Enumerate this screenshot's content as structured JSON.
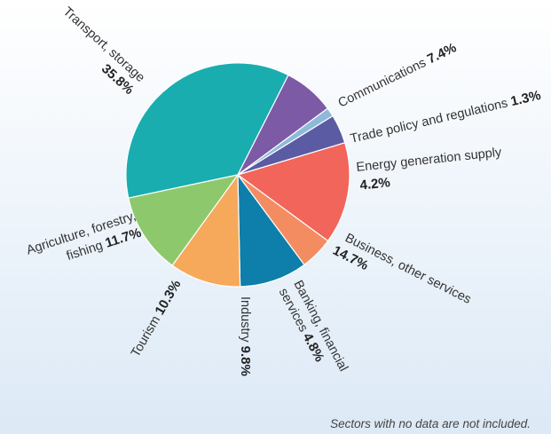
{
  "colors": {
    "background_top": "#ffffff",
    "background_bottom": "#dce9f6",
    "slice_border": "#ffffff"
  },
  "chart_data": {
    "type": "pie",
    "slices": [
      {
        "label": "Transport, storage",
        "value": 35.8,
        "color": "#1aadb0"
      },
      {
        "label": "Communications",
        "value": 7.4,
        "color": "#7c5aa6"
      },
      {
        "label": "Trade policy and regulations",
        "value": 1.3,
        "color": "#8fb9d9"
      },
      {
        "label": "Energy generation supply",
        "value": 4.2,
        "color": "#5b5ba4"
      },
      {
        "label": "Business, other services",
        "value": 14.7,
        "color": "#f1655a"
      },
      {
        "label": "Banking, financial services",
        "value": 4.8,
        "color": "#f48c62"
      },
      {
        "label": "Industry",
        "value": 9.8,
        "color": "#0e7eaa"
      },
      {
        "label": "Tourism",
        "value": 10.3,
        "color": "#f6a85b"
      },
      {
        "label": "Agriculture, forestry, fishing",
        "value": 11.7,
        "color": "#8dc96c"
      }
    ],
    "labels": {
      "transport": {
        "text": "Transport, storage",
        "pct": "35.8%"
      },
      "communications": {
        "text": "Communications ",
        "pct": "7.4%"
      },
      "trade": {
        "text": "Trade policy and regulations ",
        "pct": "1.3%"
      },
      "energy": {
        "text": "Energy generation supply",
        "pct": "4.2%"
      },
      "business": {
        "text": "Business, other services",
        "pct": "14.7%"
      },
      "banking": {
        "line1": "Banking, financial",
        "line2": "services ",
        "pct": "4.8%"
      },
      "industry": {
        "text": "Industry ",
        "pct": "9.8%"
      },
      "tourism": {
        "text": "Tourism ",
        "pct": "10.3%"
      },
      "agriculture": {
        "line1": "Agriculture, forestry,",
        "line2": "fishing ",
        "pct": "11.7%"
      }
    },
    "footnote": "Sectors with no data are not included."
  }
}
